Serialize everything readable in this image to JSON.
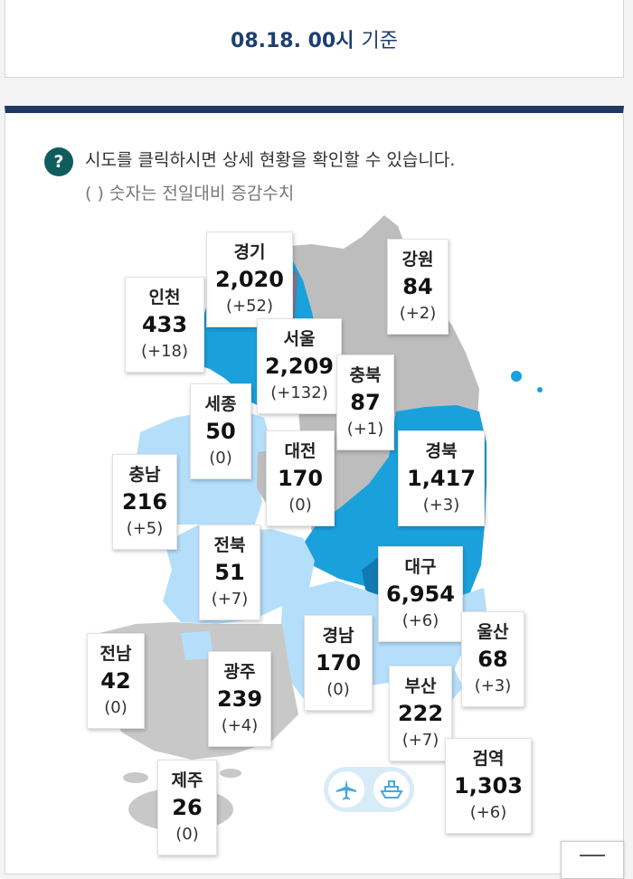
{
  "header": {
    "date": "08.18. 00시",
    "suffix": "기준"
  },
  "guide": {
    "line1": "시도를 클릭하시면 상세 현황을 확인할 수 있습니다.",
    "line2": "( ) 숫자는 전일대비 증감수치",
    "icon": "question-icon"
  },
  "colors": {
    "high": "#1aa1dc",
    "low": "#b5defa",
    "none": "#bdbdbd",
    "title_bar": "#1f3864",
    "highlight": "#ef5454"
  },
  "regions": [
    {
      "id": "gyeonggi",
      "name": "경기",
      "count": "2,020",
      "change": "(+52)"
    },
    {
      "id": "gangwon",
      "name": "강원",
      "count": "84",
      "change": "(+2)"
    },
    {
      "id": "incheon",
      "name": "인천",
      "count": "433",
      "change": "(+18)"
    },
    {
      "id": "seoul",
      "name": "서울",
      "count": "2,209",
      "change": "(+132)"
    },
    {
      "id": "chungbuk",
      "name": "충북",
      "count": "87",
      "change": "(+1)"
    },
    {
      "id": "sejong",
      "name": "세종",
      "count": "50",
      "change": "(0)"
    },
    {
      "id": "daejeon",
      "name": "대전",
      "count": "170",
      "change": "(0)"
    },
    {
      "id": "gyeongbuk",
      "name": "경북",
      "count": "1,417",
      "change": "(+3)"
    },
    {
      "id": "chungnam",
      "name": "충남",
      "count": "216",
      "change": "(+5)"
    },
    {
      "id": "jeonbuk",
      "name": "전북",
      "count": "51",
      "change": "(+7)"
    },
    {
      "id": "daegu",
      "name": "대구",
      "count": "6,954",
      "change": "(+6)"
    },
    {
      "id": "ulsan",
      "name": "울산",
      "count": "68",
      "change": "(+3)"
    },
    {
      "id": "jeonnam",
      "name": "전남",
      "count": "42",
      "change": "(0)"
    },
    {
      "id": "gyeongnam",
      "name": "경남",
      "count": "170",
      "change": "(0)"
    },
    {
      "id": "gwangju",
      "name": "광주",
      "count": "239",
      "change": "(+4)"
    },
    {
      "id": "busan",
      "name": "부산",
      "count": "222",
      "change": "(+7)"
    },
    {
      "id": "quarantine",
      "name": "검역",
      "count": "1,303",
      "change": "(+6)"
    },
    {
      "id": "jeju",
      "name": "제주",
      "count": "26",
      "change": "(0)"
    }
  ],
  "transport_icons": [
    "airplane-icon",
    "ship-icon"
  ]
}
